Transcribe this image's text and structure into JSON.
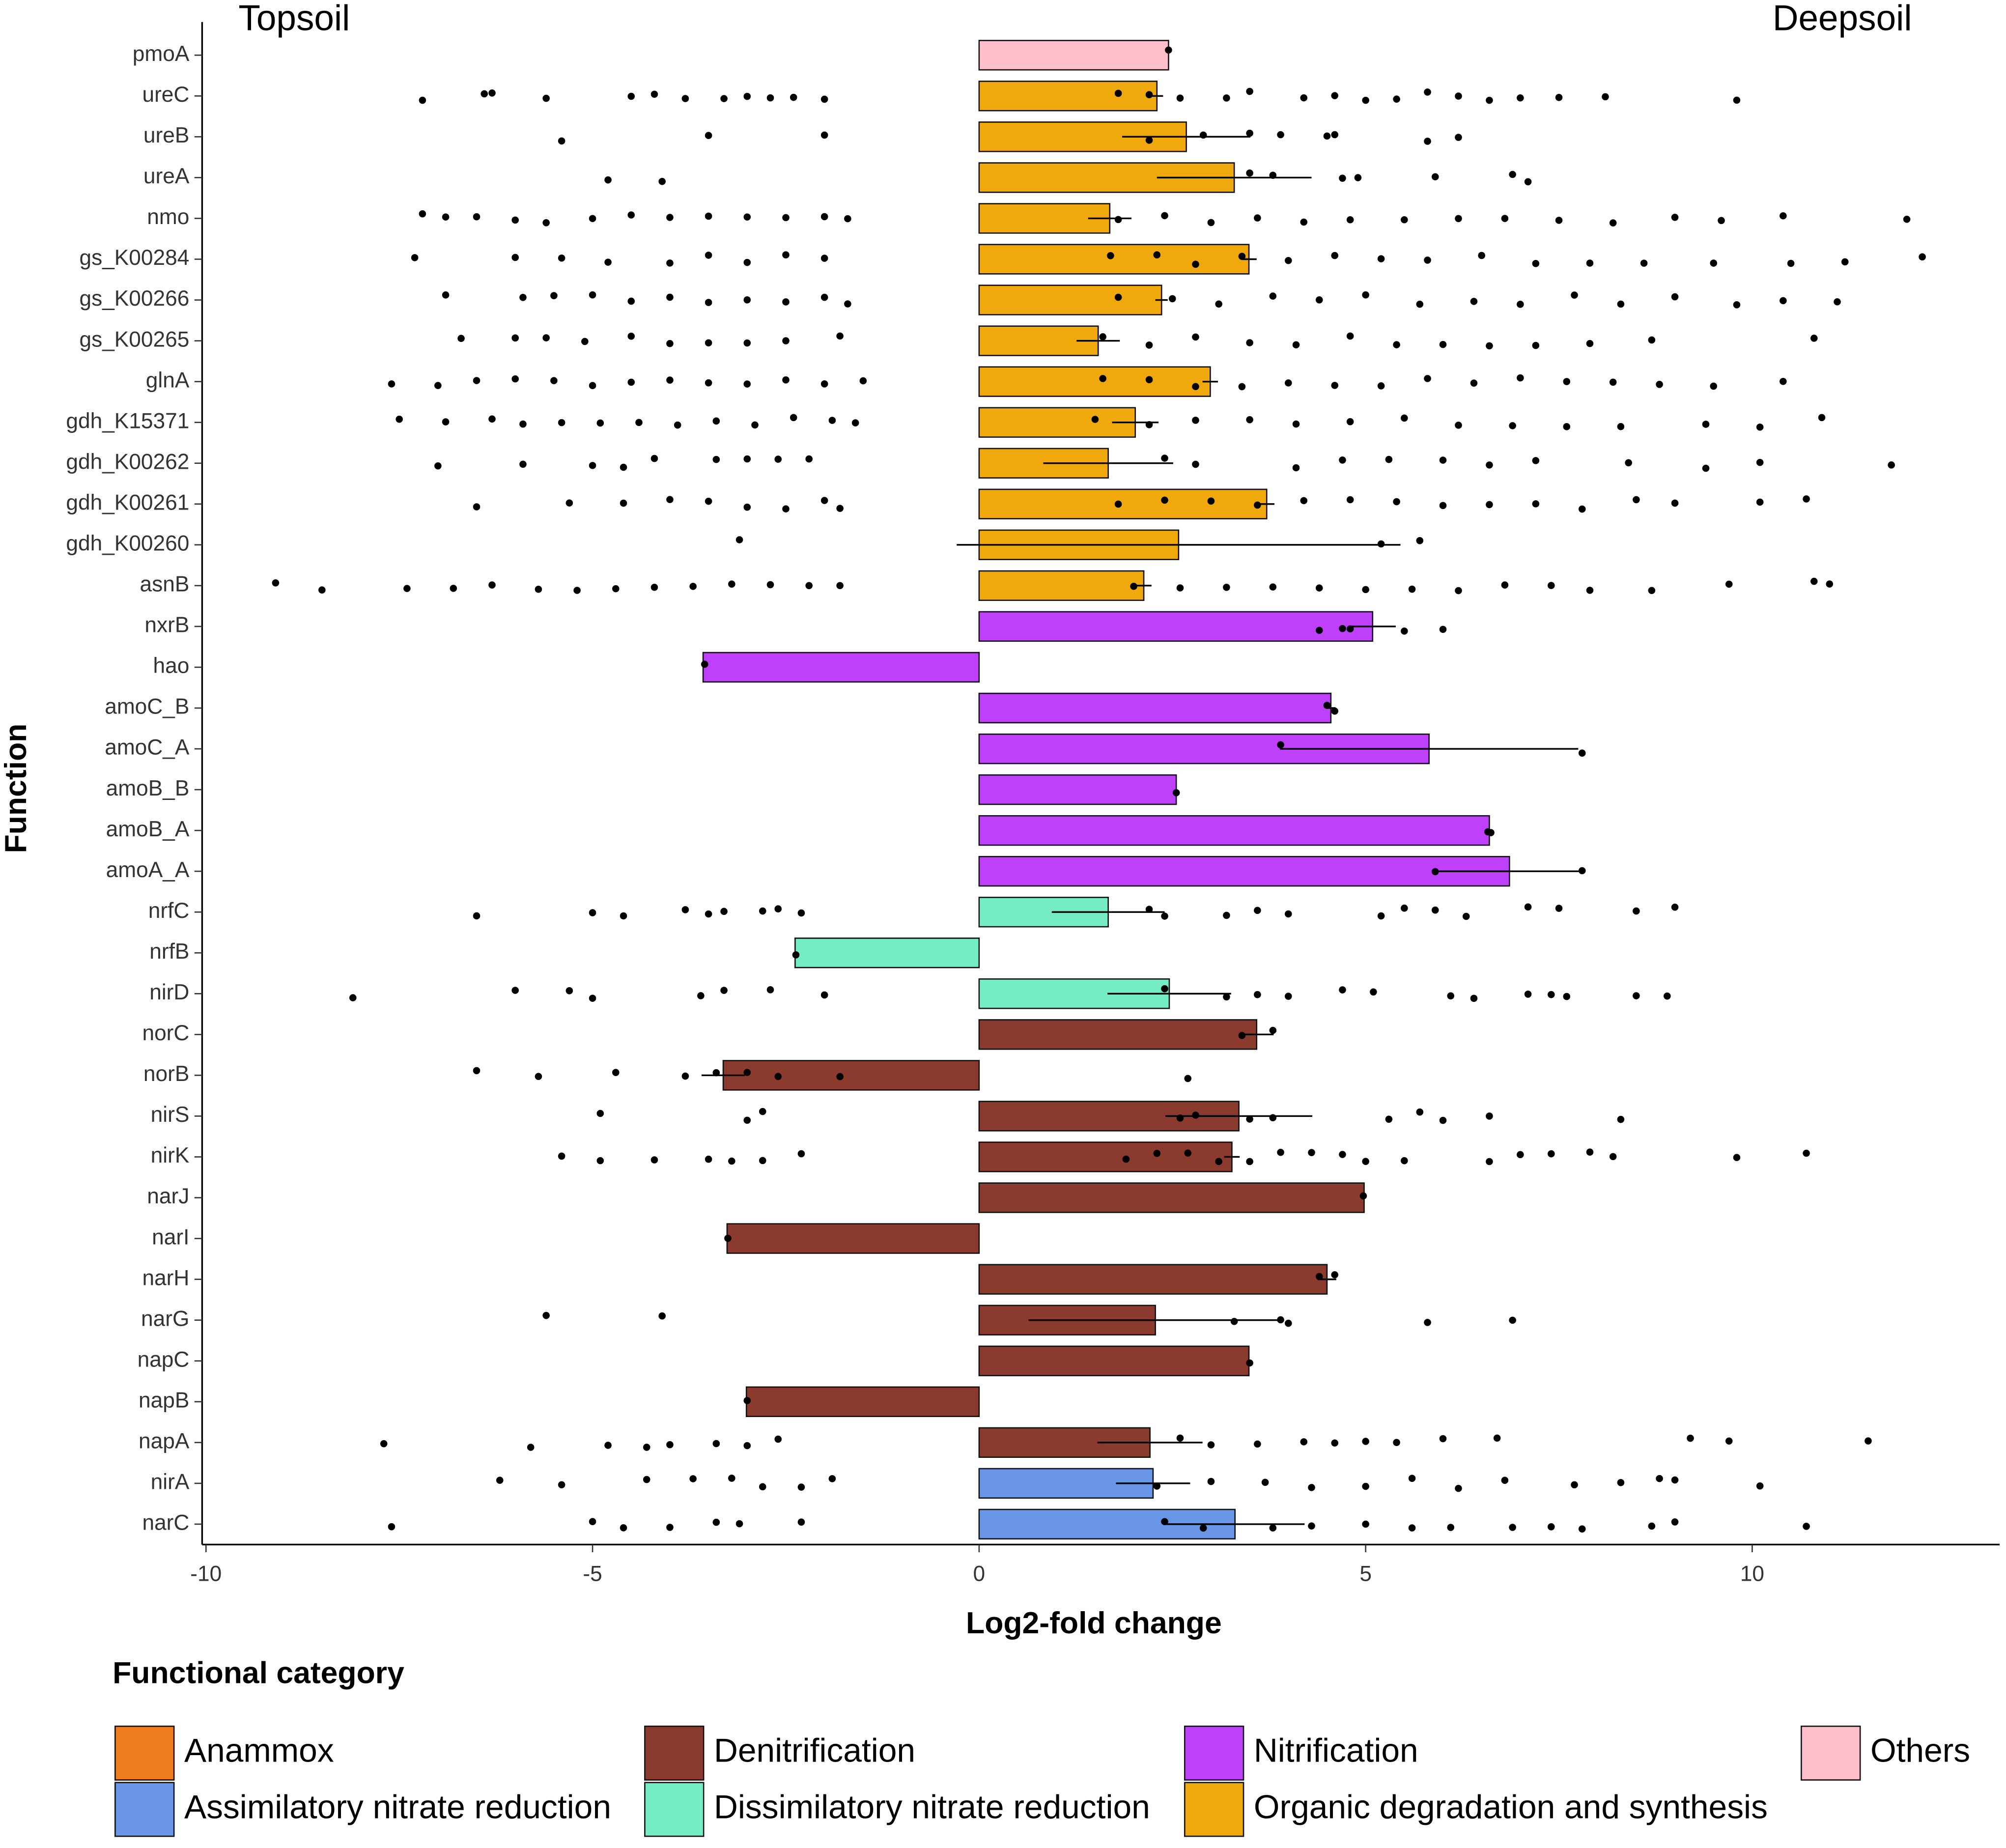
{
  "chart_data": {
    "type": "bar",
    "orientation": "horizontal",
    "xlabel": "Log2-fold change",
    "ylabel": "Function",
    "annotations": [
      "Topsoil",
      "Deepsoil"
    ],
    "legend_title": "Functional category",
    "legend": [
      {
        "name": "Anammox",
        "color": "#f07d1e"
      },
      {
        "name": "Assimilatory nitrate reduction",
        "color": "#6a96e8"
      },
      {
        "name": "Denitrification",
        "color": "#8b3a2e"
      },
      {
        "name": "Dissimilatory nitrate reduction",
        "color": "#74ecc6"
      },
      {
        "name": "Nitrification",
        "color": "#bf40fb"
      },
      {
        "name": "Organic degradation and synthesis",
        "color": "#efa90c"
      },
      {
        "name": "Others",
        "color": "#ffc0cb"
      }
    ],
    "xlim": [
      -10.05,
      13.2
    ],
    "xticks": [
      -10,
      -5,
      0,
      5,
      10
    ],
    "grid": false,
    "categories": [
      "pmoA",
      "ureC",
      "ureB",
      "ureA",
      "nmo",
      "gs_K00284",
      "gs_K00266",
      "gs_K00265",
      "glnA",
      "gdh_K15371",
      "gdh_K00262",
      "gdh_K00261",
      "gdh_K00260",
      "asnB",
      "nxrB",
      "hao",
      "amoC_B",
      "amoC_A",
      "amoB_B",
      "amoB_A",
      "amoA_A",
      "nrfC",
      "nrfB",
      "nirD",
      "norC",
      "norB",
      "nirS",
      "nirK",
      "narJ",
      "narI",
      "narH",
      "narG",
      "napC",
      "napB",
      "napA",
      "nirA",
      "narC"
    ],
    "groups": [
      "Others",
      "Organic degradation and synthesis",
      "Organic degradation and synthesis",
      "Organic degradation and synthesis",
      "Organic degradation and synthesis",
      "Organic degradation and synthesis",
      "Organic degradation and synthesis",
      "Organic degradation and synthesis",
      "Organic degradation and synthesis",
      "Organic degradation and synthesis",
      "Organic degradation and synthesis",
      "Organic degradation and synthesis",
      "Organic degradation and synthesis",
      "Organic degradation and synthesis",
      "Nitrification",
      "Nitrification",
      "Nitrification",
      "Nitrification",
      "Nitrification",
      "Nitrification",
      "Nitrification",
      "Dissimilatory nitrate reduction",
      "Dissimilatory nitrate reduction",
      "Dissimilatory nitrate reduction",
      "Denitrification",
      "Denitrification",
      "Denitrification",
      "Denitrification",
      "Denitrification",
      "Denitrification",
      "Denitrification",
      "Denitrification",
      "Denitrification",
      "Denitrification",
      "Denitrification",
      "Assimilatory nitrate reduction",
      "Assimilatory nitrate reduction"
    ],
    "values": [
      2.45,
      2.3,
      2.68,
      3.3,
      1.69,
      3.49,
      2.36,
      1.54,
      2.99,
      2.02,
      1.67,
      3.72,
      2.58,
      2.13,
      5.09,
      -3.57,
      4.55,
      5.82,
      2.55,
      6.6,
      6.86,
      1.67,
      -2.38,
      2.46,
      3.59,
      -3.31,
      3.36,
      3.27,
      4.98,
      -3.26,
      4.5,
      2.28,
      3.49,
      -3.01,
      2.21,
      2.25,
      3.31
    ],
    "errors": [
      null,
      0.08,
      0.83,
      1.0,
      0.28,
      0.1,
      0.08,
      0.28,
      0.1,
      0.3,
      0.84,
      0.1,
      2.87,
      0.1,
      0.3,
      null,
      0.06,
      1.93,
      null,
      0.04,
      0.93,
      0.73,
      null,
      0.8,
      0.22,
      0.28,
      0.95,
      0.1,
      null,
      null,
      0.12,
      1.64,
      null,
      null,
      0.68,
      0.48,
      0.9
    ],
    "points": [
      [
        2.45
      ],
      [
        -7.2,
        -6.4,
        -6.3,
        -5.6,
        -4.5,
        -4.2,
        -3.8,
        -3.3,
        -3.0,
        -2.7,
        -2.4,
        -2.0,
        1.8,
        2.2,
        2.6,
        3.2,
        3.5,
        4.2,
        4.6,
        5.0,
        5.4,
        5.8,
        6.2,
        6.6,
        7.0,
        7.5,
        8.1,
        9.8
      ],
      [
        -5.4,
        -3.5,
        -2.0,
        2.2,
        2.9,
        3.5,
        3.9,
        4.5,
        4.6,
        5.8,
        6.2
      ],
      [
        -4.8,
        -4.1,
        3.5,
        3.8,
        4.7,
        4.9,
        5.9,
        6.9,
        7.1
      ],
      [
        -7.2,
        -6.9,
        -6.5,
        -6.0,
        -5.6,
        -5.0,
        -4.5,
        -4.0,
        -3.5,
        -3.0,
        -2.5,
        -2.0,
        -1.7,
        1.8,
        2.4,
        3.0,
        3.6,
        4.2,
        4.8,
        5.5,
        6.2,
        6.8,
        7.5,
        8.2,
        9.0,
        9.6,
        10.4,
        12.0
      ],
      [
        -7.3,
        -6.0,
        -5.4,
        -4.8,
        -4.0,
        -3.5,
        -3.0,
        -2.5,
        -2.0,
        1.7,
        2.3,
        2.8,
        3.4,
        4.0,
        4.6,
        5.2,
        5.8,
        6.5,
        7.2,
        7.9,
        8.6,
        9.5,
        10.5,
        11.2,
        12.2
      ],
      [
        -6.9,
        -5.9,
        -5.5,
        -5.0,
        -4.5,
        -4.0,
        -3.5,
        -3.0,
        -2.5,
        -2.0,
        -1.7,
        1.8,
        2.5,
        3.1,
        3.8,
        4.4,
        5.0,
        5.7,
        6.4,
        7.0,
        7.7,
        8.3,
        9.0,
        9.8,
        10.4,
        11.1
      ],
      [
        -6.7,
        -6.0,
        -5.6,
        -5.1,
        -4.5,
        -4.0,
        -3.5,
        -3.0,
        -2.5,
        -1.8,
        1.6,
        2.2,
        2.8,
        3.5,
        4.1,
        4.8,
        5.4,
        6.0,
        6.6,
        7.2,
        7.9,
        8.7,
        10.8
      ],
      [
        -7.6,
        -7.0,
        -6.5,
        -6.0,
        -5.5,
        -5.0,
        -4.5,
        -4.0,
        -3.5,
        -3.0,
        -2.5,
        -2.0,
        -1.5,
        1.6,
        2.2,
        2.8,
        3.4,
        4.0,
        4.6,
        5.2,
        5.8,
        6.4,
        7.0,
        7.6,
        8.2,
        8.8,
        9.5,
        10.4
      ],
      [
        -7.5,
        -6.9,
        -6.3,
        -5.9,
        -5.4,
        -4.9,
        -4.4,
        -3.9,
        -3.4,
        -2.9,
        -2.4,
        -1.9,
        -1.6,
        1.5,
        2.2,
        2.8,
        3.5,
        4.1,
        4.8,
        5.5,
        6.2,
        6.9,
        7.6,
        8.3,
        9.4,
        10.1,
        10.9
      ],
      [
        -7.0,
        -5.9,
        -5.0,
        -4.6,
        -4.2,
        -3.4,
        -3.0,
        -2.6,
        -2.2,
        2.4,
        2.8,
        4.1,
        4.7,
        5.3,
        6.0,
        6.6,
        7.2,
        8.4,
        9.4,
        10.1,
        11.8
      ],
      [
        -6.5,
        -5.3,
        -4.6,
        -4.0,
        -3.5,
        -3.0,
        -2.5,
        -2.0,
        -1.8,
        1.8,
        2.4,
        3.0,
        3.6,
        4.2,
        4.8,
        5.4,
        6.0,
        6.6,
        7.2,
        7.8,
        8.5,
        9.0,
        10.1,
        10.7
      ],
      [
        -3.1,
        5.2,
        5.7
      ],
      [
        -9.1,
        -8.5,
        -7.4,
        -6.8,
        -6.3,
        -5.7,
        -5.2,
        -4.7,
        -4.2,
        -3.7,
        -3.2,
        -2.7,
        -2.2,
        -1.8,
        2.0,
        2.6,
        3.2,
        3.8,
        4.4,
        5.0,
        5.6,
        6.2,
        6.8,
        7.4,
        7.9,
        8.7,
        9.7,
        10.8,
        11.0
      ],
      [
        4.4,
        4.7,
        4.8,
        5.5,
        6.0
      ],
      [
        -3.55
      ],
      [
        4.5,
        4.6
      ],
      [
        3.9,
        7.8
      ],
      [
        2.55
      ],
      [
        6.58,
        6.62
      ],
      [
        5.9,
        7.8
      ],
      [
        -6.5,
        -5.0,
        -4.6,
        -3.8,
        -3.5,
        -3.3,
        -2.8,
        -2.6,
        -2.3,
        2.2,
        2.4,
        3.2,
        3.6,
        4.0,
        5.2,
        5.5,
        5.9,
        6.3,
        7.1,
        7.5,
        8.5,
        9.0
      ],
      [
        -2.37
      ],
      [
        -8.1,
        -6.0,
        -5.3,
        -5.0,
        -3.6,
        -3.3,
        -2.7,
        -2.0,
        2.4,
        3.2,
        3.6,
        4.0,
        4.7,
        5.1,
        6.1,
        6.4,
        7.1,
        7.4,
        7.6,
        8.5,
        8.9
      ],
      [
        3.4,
        3.8
      ],
      [
        -6.5,
        -5.7,
        -4.7,
        -3.8,
        -3.4,
        -3.0,
        -2.6,
        -1.8,
        2.7
      ],
      [
        -4.9,
        -3.0,
        -2.8,
        2.6,
        2.8,
        3.5,
        3.8,
        5.3,
        5.7,
        6.0,
        6.6,
        8.3
      ],
      [
        -5.4,
        -4.9,
        -4.2,
        -3.5,
        -3.2,
        -2.8,
        -2.3,
        1.9,
        2.3,
        2.7,
        3.1,
        3.5,
        3.9,
        4.3,
        4.7,
        5.0,
        5.5,
        6.6,
        7.0,
        7.4,
        7.9,
        8.2,
        9.8,
        10.7
      ],
      [
        4.97
      ],
      [
        -3.25
      ],
      [
        4.4,
        4.6
      ],
      [
        -5.6,
        -4.1,
        3.3,
        3.9,
        4.0,
        5.8,
        6.9
      ],
      [
        3.5
      ],
      [
        -3.0
      ],
      [
        -7.7,
        -5.8,
        -4.8,
        -4.3,
        -4.0,
        -3.4,
        -3.0,
        -2.6,
        2.6,
        3.0,
        3.6,
        4.2,
        4.6,
        5.0,
        5.4,
        6.0,
        6.7,
        9.2,
        9.7,
        11.5
      ],
      [
        -6.2,
        -5.4,
        -4.3,
        -3.7,
        -3.2,
        -2.8,
        -2.3,
        -1.9,
        2.3,
        3.0,
        3.7,
        4.3,
        5.0,
        5.6,
        6.2,
        6.8,
        7.7,
        8.3,
        8.8,
        9.0,
        10.1
      ],
      [
        -7.6,
        -5.0,
        -4.6,
        -4.0,
        -3.4,
        -3.1,
        -2.3,
        2.4,
        2.9,
        3.8,
        4.3,
        5.0,
        5.6,
        6.1,
        6.9,
        7.4,
        7.8,
        8.7,
        9.0,
        10.7
      ]
    ]
  }
}
